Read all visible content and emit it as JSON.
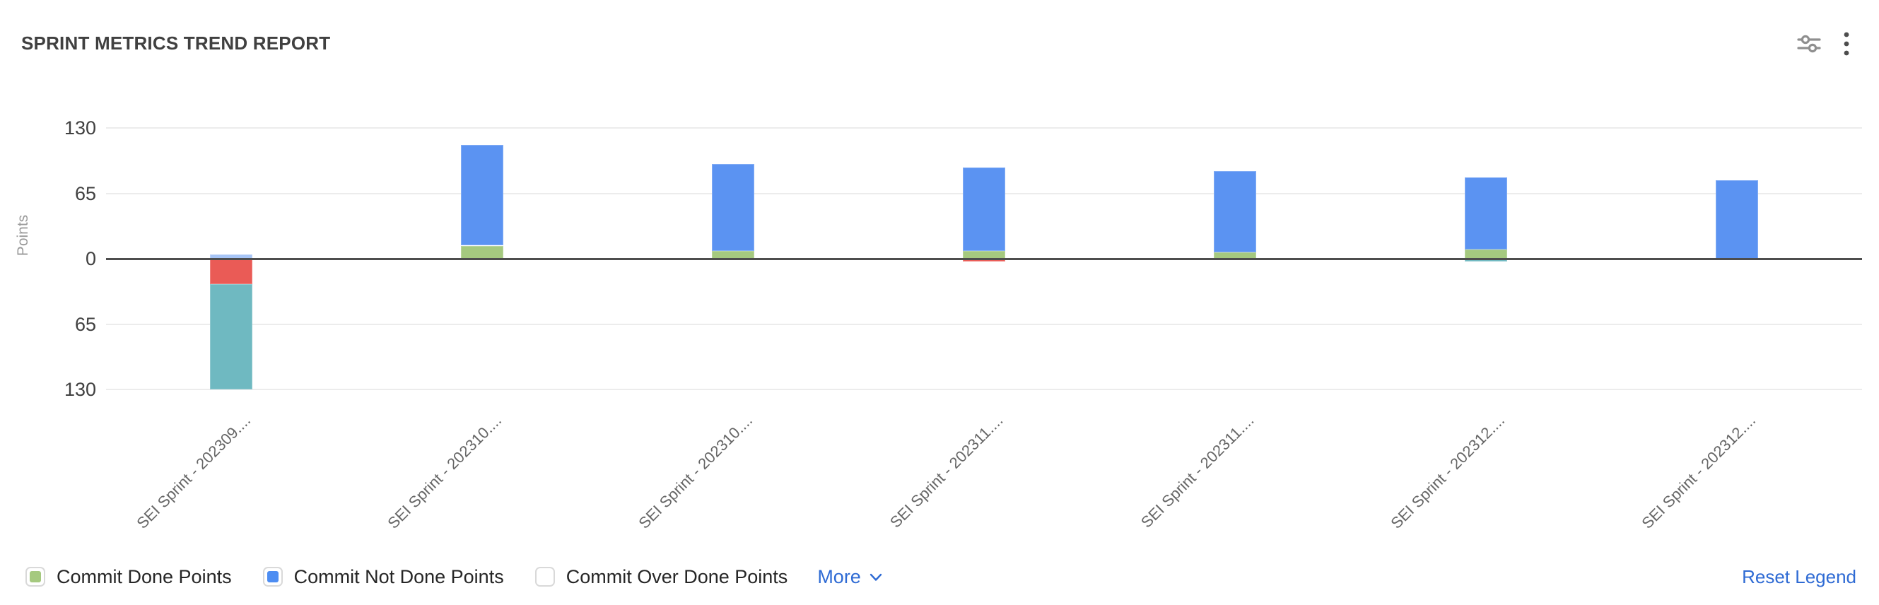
{
  "header": {
    "title": "SPRINT METRICS TREND REPORT",
    "icons": {
      "settings": "sliders-icon",
      "more_options": "kebab-menu-icon"
    }
  },
  "chart_data": {
    "type": "bar",
    "stacked": true,
    "title": "SPRINT METRICS TREND REPORT",
    "xlabel": "",
    "ylabel": "Points",
    "ylim": [
      -130,
      130
    ],
    "y_ticks": [
      130,
      65,
      0,
      -65,
      -130
    ],
    "y_tick_labels": [
      "130",
      "65",
      "0",
      "65",
      "130"
    ],
    "grid": true,
    "legend_position": "bottom",
    "categories": [
      "SEI Sprint - 202309....",
      "SEI Sprint - 202310....",
      "SEI Sprint - 202310....",
      "SEI Sprint - 202311....",
      "SEI Sprint - 202311....",
      "SEI Sprint - 202312....",
      "SEI Sprint - 202312...."
    ],
    "series": [
      {
        "name": "Commit Done Points",
        "color": "#a5c97f",
        "in_visible_legend": true,
        "values": [
          0,
          13,
          8,
          8,
          6,
          9,
          0
        ]
      },
      {
        "name": "",
        "color": "#a7c5f6",
        "in_visible_legend": false,
        "values": [
          4,
          0,
          0,
          0,
          0,
          0,
          0
        ]
      },
      {
        "name": "Commit Not Done Points",
        "color": "#5b93f2",
        "in_visible_legend": true,
        "values": [
          0,
          100,
          86,
          83,
          81,
          72,
          78
        ]
      },
      {
        "name": "Commit Over Done Points",
        "color": "#ffffff",
        "in_visible_legend": true,
        "values": [
          0,
          0,
          0,
          0,
          0,
          0,
          0
        ]
      },
      {
        "name": "",
        "color": "#ea5b56",
        "in_visible_legend": false,
        "values": [
          -25,
          0,
          0,
          -3,
          0,
          0,
          0
        ]
      },
      {
        "name": "",
        "color": "#6fb9c1",
        "in_visible_legend": false,
        "values": [
          -105,
          0,
          0,
          0,
          0,
          -3,
          0
        ]
      }
    ]
  },
  "legend": {
    "items": [
      {
        "label": "Commit Done Points",
        "color": "#a5c97f"
      },
      {
        "label": "Commit Not Done Points",
        "color": "#4d8df2"
      },
      {
        "label": "Commit Over Done Points",
        "color": "#ffffff"
      }
    ],
    "more_label": "More",
    "reset_label": "Reset Legend"
  }
}
